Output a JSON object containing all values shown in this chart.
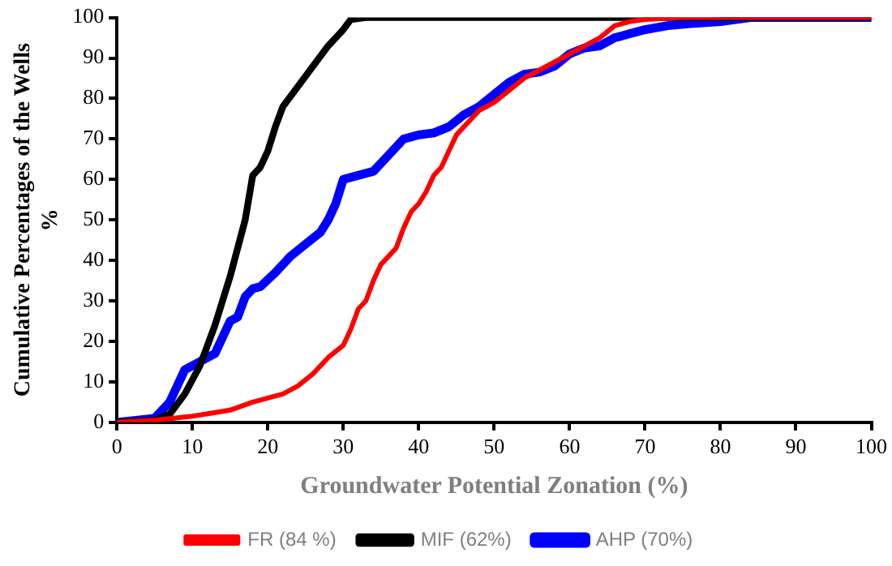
{
  "chart_data": {
    "type": "line",
    "xlabel": "Groundwater Potential Zonation (%)",
    "ylabel": "Cumulative Percentages of the Wells\n%",
    "xlim": [
      0,
      100
    ],
    "xticks": [
      0,
      10,
      20,
      30,
      40,
      50,
      60,
      70,
      80,
      90,
      100
    ],
    "ylim": [
      0,
      100
    ],
    "yticks": [
      0,
      10,
      20,
      30,
      40,
      50,
      60,
      70,
      80,
      90,
      100
    ],
    "grid": false,
    "legend": "bottom",
    "marker": "none",
    "line_style": "solid",
    "series": [
      {
        "name": "FR (84 %)",
        "color": "#ff0000",
        "x": [
          0,
          5,
          10,
          15,
          18,
          20,
          22,
          24,
          26,
          28,
          30,
          31,
          32,
          33,
          34,
          35,
          36,
          37,
          38,
          39,
          40,
          41,
          42,
          43,
          44,
          45,
          46,
          48,
          50,
          52,
          54,
          56,
          58,
          60,
          62,
          64,
          66,
          68,
          70,
          75,
          100
        ],
        "values": [
          0,
          0.5,
          1.5,
          3,
          5,
          6,
          7,
          9,
          12,
          16,
          19,
          23,
          28,
          30,
          35,
          39,
          41,
          43,
          48,
          52,
          54,
          57,
          61,
          63,
          67,
          71,
          73,
          77,
          79,
          82,
          85,
          87,
          89,
          91,
          93,
          95,
          98,
          99,
          99.5,
          100,
          100
        ]
      },
      {
        "name": "MIF (62%)",
        "color": "#000000",
        "x": [
          0,
          5,
          7,
          9,
          11,
          13,
          15,
          17,
          18,
          19,
          20,
          21,
          22,
          24,
          26,
          28,
          30,
          31,
          33,
          100
        ],
        "values": [
          0,
          0.5,
          2,
          7,
          14,
          24,
          36,
          50,
          61,
          63,
          67,
          73,
          78,
          83,
          88,
          93,
          97,
          99.5,
          100,
          100
        ]
      },
      {
        "name": "AHP (70%)",
        "color": "#0000ff",
        "x": [
          0,
          5,
          7,
          9,
          11,
          13,
          14,
          15,
          16,
          17,
          18,
          19,
          21,
          23,
          25,
          27,
          28,
          29,
          30,
          32,
          34,
          36,
          38,
          40,
          42,
          44,
          46,
          48,
          50,
          52,
          54,
          56,
          58,
          60,
          62,
          64,
          66,
          68,
          70,
          73,
          76,
          80,
          84,
          100
        ],
        "values": [
          0,
          1,
          5,
          13,
          15,
          17,
          21,
          25,
          26,
          31,
          33,
          33.5,
          37,
          41,
          44,
          47,
          50,
          54,
          60,
          61,
          62,
          66,
          70,
          71,
          71.5,
          73,
          76,
          78,
          81,
          84,
          86,
          86.5,
          88,
          91,
          92.5,
          93,
          95,
          96,
          97,
          98,
          98.5,
          99,
          100,
          100
        ]
      }
    ]
  }
}
